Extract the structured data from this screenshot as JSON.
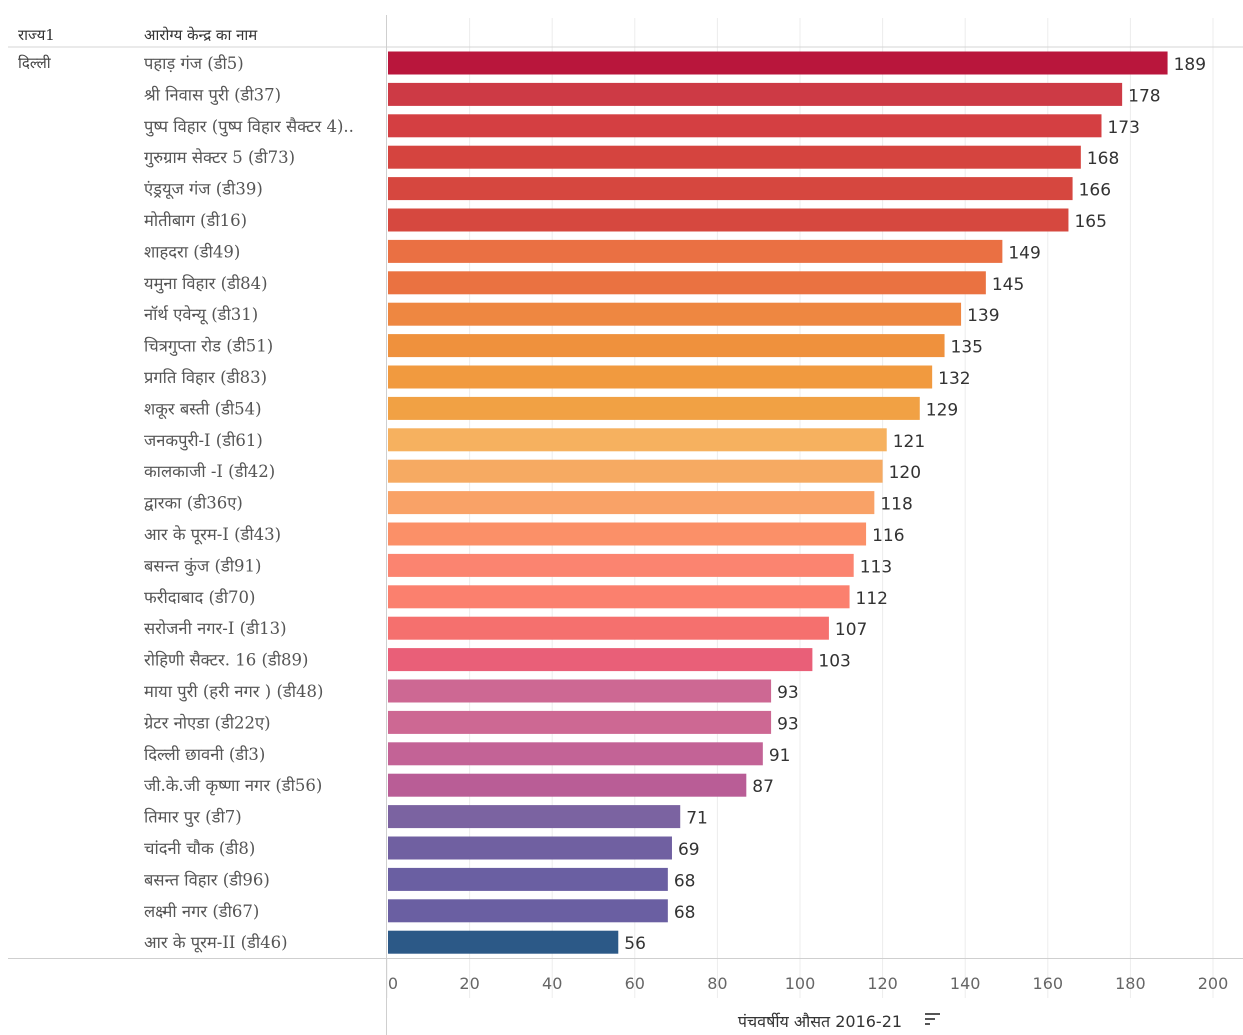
{
  "headers": {
    "state": "राज्य1",
    "center": "आरोग्य केन्द्र का नाम"
  },
  "state_name": "दिल्ली",
  "chart_data": {
    "type": "bar",
    "orientation": "horizontal",
    "title": "",
    "xlabel": "पंचवर्षीय औसत 2016-21",
    "ylabel": "आरोग्य केन्द्र का नाम",
    "xlim": [
      0,
      200
    ],
    "x_ticks": [
      0,
      20,
      40,
      60,
      80,
      100,
      120,
      140,
      160,
      180,
      200
    ],
    "grid": true,
    "data_labels": true,
    "categories": [
      "पहाड़ गंज (डी5)",
      "श्री निवास पुरी (डी37)",
      "पुष्प विहार (पुष्प विहार सैक्टर 4)..",
      "गुरुग्राम सेक्टर 5 (डी73)",
      "एंड्रयूज गंज (डी39)",
      "मोतीबाग (डी16)",
      "शाहदरा (डी49)",
      "यमुना विहार (डी84)",
      "नॉर्थ एवेन्यू (डी31)",
      "चित्रगुप्ता रोड (डी51)",
      "प्रगति विहार (डी83)",
      "शकूर बस्ती (डी54)",
      "जनकपुरी-I (डी61)",
      "कालकाजी -I (डी42)",
      "द्वारका (डी36ए)",
      "आर के पूरम-I (डी43)",
      "बसन्त कुंज (डी91)",
      "फरीदाबाद (डी70)",
      "सरोजनी नगर-I (डी13)",
      "रोहिणी सैक्टर. 16 (डी89)",
      "माया पुरी (हरी नगर ) (डी48)",
      "ग्रेटर नोएडा (डी22ए)",
      "दिल्ली छावनी (डी3)",
      "जी.के.जी कृष्णा नगर (डी56)",
      "तिमार पुर (डी7)",
      "चांदनी चौक (डी8)",
      "बसन्त विहार (डी96)",
      "लक्ष्मी नगर (डी67)",
      "आर के पूरम-II (डी46)"
    ],
    "values": [
      189,
      178,
      173,
      168,
      166,
      165,
      149,
      145,
      139,
      135,
      132,
      129,
      121,
      120,
      118,
      116,
      113,
      112,
      107,
      103,
      93,
      93,
      91,
      87,
      71,
      69,
      68,
      68,
      56
    ],
    "colors": [
      "#b9163c",
      "#cd3a45",
      "#d43f42",
      "#d5443f",
      "#d6473f",
      "#d6483f",
      "#ea7043",
      "#ea7241",
      "#ee8741",
      "#ef913d",
      "#f19a3f",
      "#f1a144",
      "#f6b15f",
      "#f6aa62",
      "#f9a267",
      "#fb9068",
      "#fb8470",
      "#fb806e",
      "#f5706e",
      "#e95f78",
      "#cd6893",
      "#cd6893",
      "#c36396",
      "#b95d96",
      "#7b63a1",
      "#7060a1",
      "#6a5fa2",
      "#6a5fa2",
      "#2c5987"
    ]
  }
}
